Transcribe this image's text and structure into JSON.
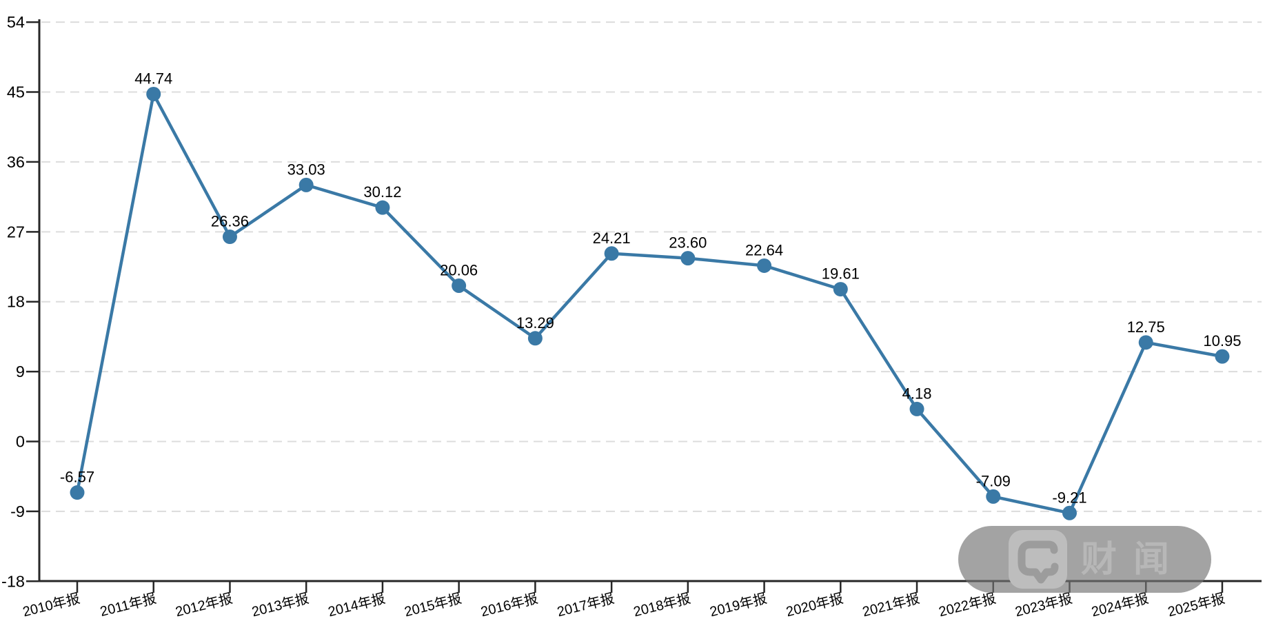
{
  "chart_data": {
    "type": "line",
    "title": "",
    "xlabel": "",
    "ylabel": "",
    "categories": [
      "2010年报",
      "2011年报",
      "2012年报",
      "2013年报",
      "2014年报",
      "2015年报",
      "2016年报",
      "2017年报",
      "2018年报",
      "2019年报",
      "2020年报",
      "2021年报",
      "2022年报",
      "2023年报",
      "2024年报",
      "2025年报"
    ],
    "values": [
      -6.57,
      44.74,
      26.36,
      33.03,
      30.12,
      20.06,
      13.29,
      24.21,
      23.6,
      22.64,
      19.61,
      4.18,
      -7.09,
      -9.21,
      12.75,
      10.95
    ],
    "point_labels": [
      "-6.57",
      "44.74",
      "26.36",
      "33.03",
      "30.12",
      "20.06",
      "13.29",
      "24.21",
      "23.60",
      "22.64",
      "19.61",
      "4.18",
      "-7.09",
      "-9.21",
      "12.75",
      "10.95"
    ],
    "yticks": [
      54,
      45,
      36,
      27,
      18,
      9,
      0,
      -9,
      -18
    ],
    "ylim": [
      -18,
      54
    ],
    "grid": "horizontal-dashed",
    "legend_position": "none",
    "line_color": "#3A79A6",
    "marker": "circle"
  },
  "watermark": {
    "text": "财闻",
    "icon": "chat-bubble-logo"
  },
  "colors": {
    "accent": "#3A79A6",
    "grid": "#DCDCDC",
    "axis": "#262626",
    "label": "#000000",
    "watermark_fg": "#B7B7B7"
  }
}
